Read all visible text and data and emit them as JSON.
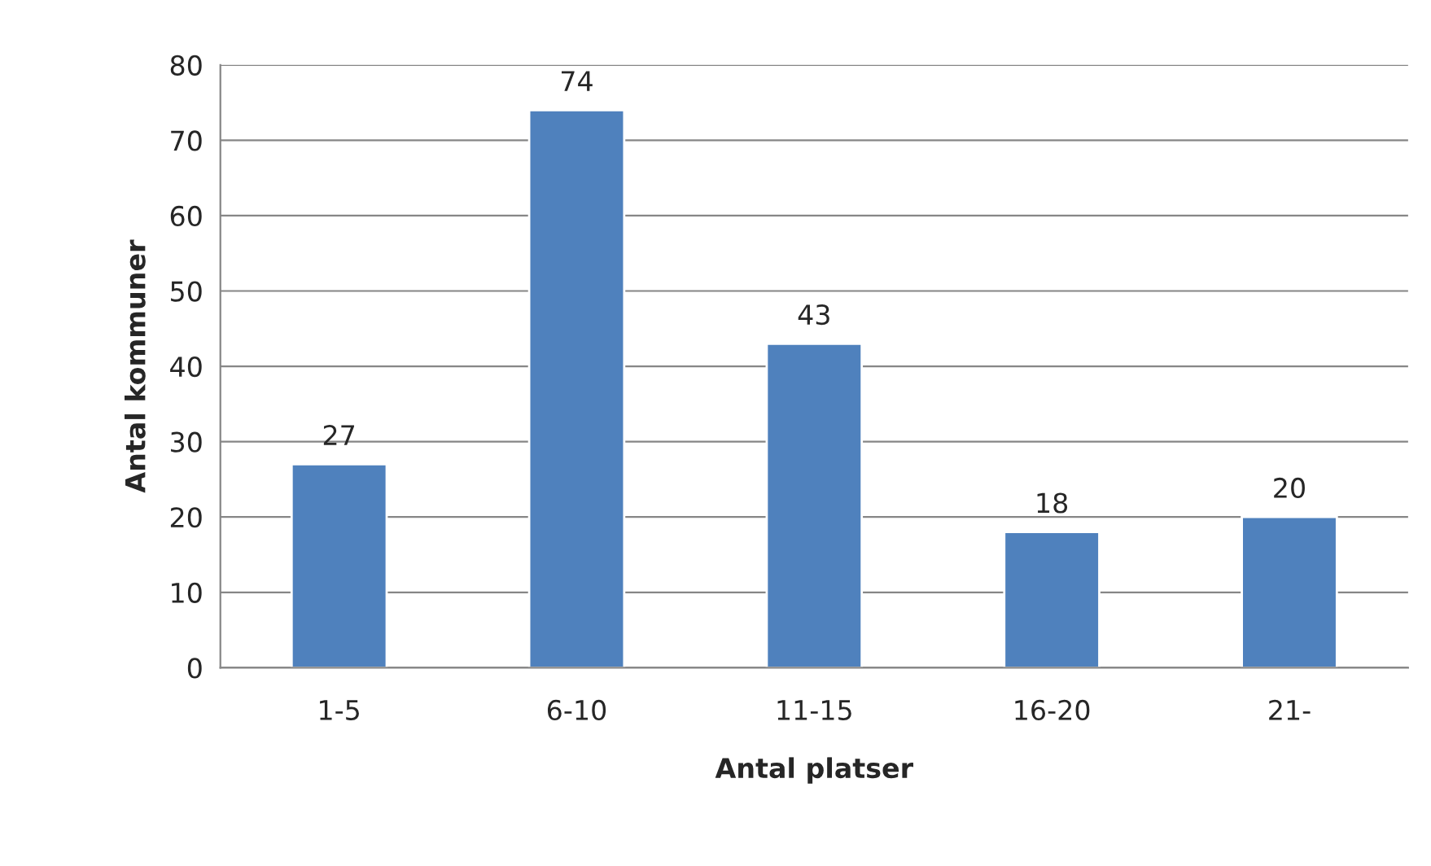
{
  "chart_data": {
    "type": "bar",
    "xlabel": "Antal platser",
    "ylabel": "Antal kommuner",
    "categories": [
      "1-5",
      "6-10",
      "11-15",
      "16-20",
      "21-"
    ],
    "values": [
      27,
      74,
      43,
      18,
      20
    ],
    "color": "#4f81bd",
    "ylim": [
      0,
      80
    ],
    "yticks": [
      0,
      10,
      20,
      30,
      40,
      50,
      60,
      70,
      80
    ],
    "grid": "y",
    "data_labels": true,
    "legend": false
  }
}
